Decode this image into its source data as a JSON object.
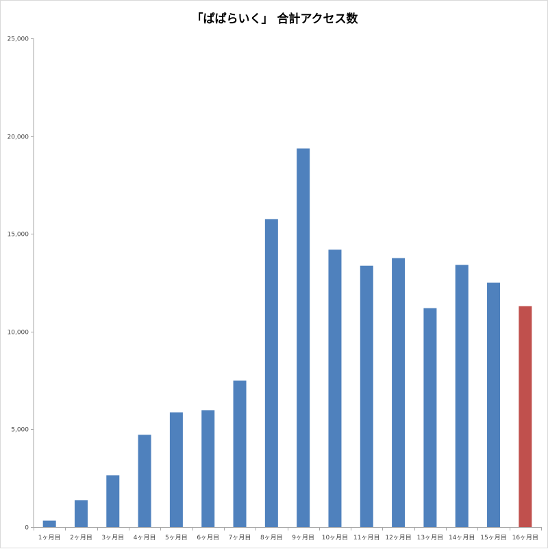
{
  "chart_data": {
    "type": "bar",
    "title": "「ぱぱらいく」 合計アクセス数",
    "categories": [
      "1ヶ月目",
      "2ヶ月目",
      "3ヶ月目",
      "4ヶ月目",
      "5ヶ月目",
      "6ヶ月目",
      "7ヶ月目",
      "8ヶ月目",
      "9ヶ月目",
      "10ヶ月目",
      "11ヶ月目",
      "12ヶ月目",
      "13ヶ月目",
      "14ヶ月目",
      "15ヶ月目",
      "16ヶ月目"
    ],
    "series": [
      {
        "values": [
          330,
          1370,
          2650,
          4720,
          5870,
          5980,
          7490,
          15750,
          19370,
          14190,
          13370,
          13760,
          11200,
          13410,
          12500,
          11300
        ]
      }
    ],
    "y_ticks": [
      "0",
      "5,000",
      "10,000",
      "15,000",
      "20,000",
      "25,000"
    ],
    "ylim": [
      0,
      25000
    ],
    "colors": {
      "bar": "#4f81bd",
      "highlight_bar": "#c0504d",
      "axis": "#a6a6a6"
    },
    "highlight_index": 15,
    "grid": false,
    "legend": "none"
  }
}
